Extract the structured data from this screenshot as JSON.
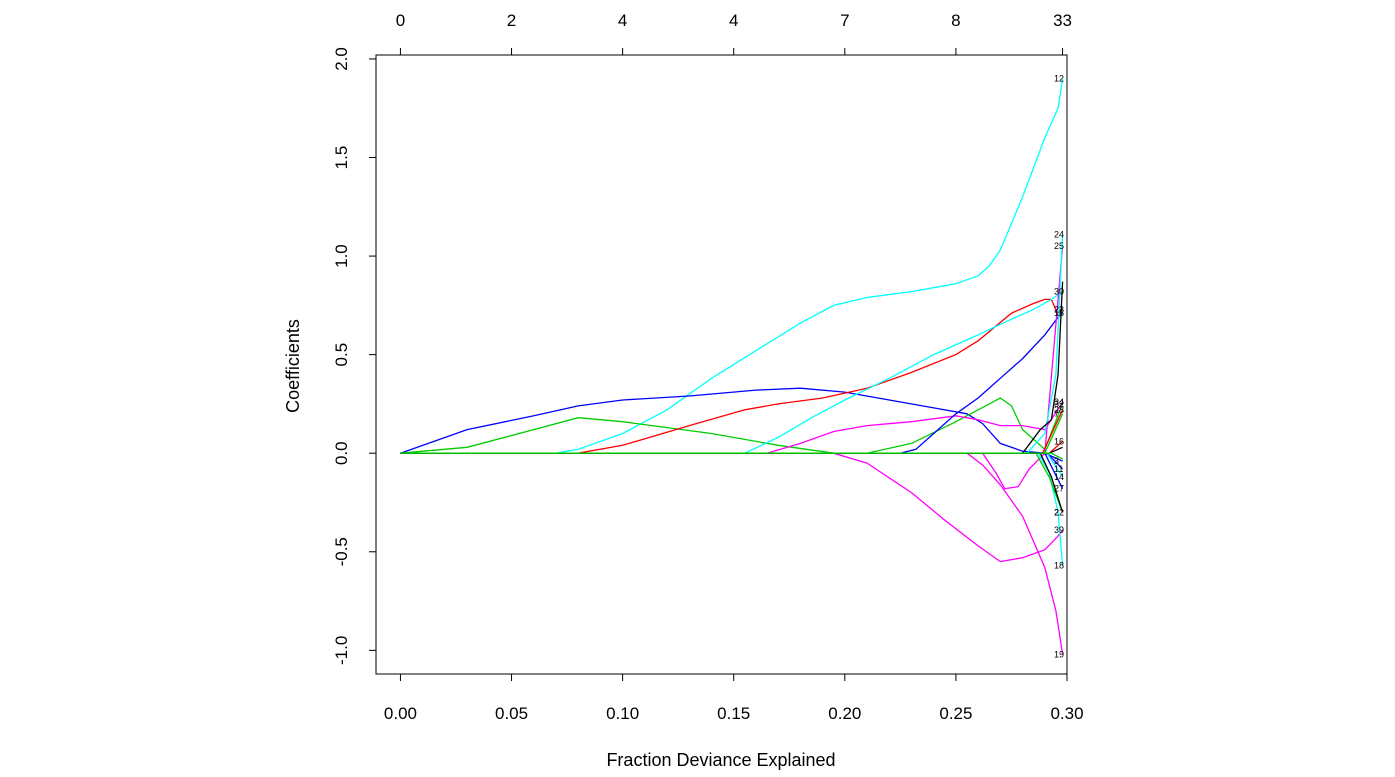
{
  "chart_data": {
    "type": "line",
    "title": "",
    "xlabel": "Fraction Deviance Explained",
    "ylabel": "Coefficients",
    "xlim": [
      -0.011,
      0.3
    ],
    "ylim": [
      -1.12,
      2.02
    ],
    "x_ticks": [
      0.0,
      0.05,
      0.1,
      0.15,
      0.2,
      0.25,
      0.3
    ],
    "x_tick_labels": [
      "0.00",
      "0.05",
      "0.10",
      "0.15",
      "0.20",
      "0.25",
      "0.30"
    ],
    "y_ticks": [
      -1.0,
      -0.5,
      0.0,
      0.5,
      1.0,
      1.5,
      2.0
    ],
    "y_tick_labels": [
      "-1.0",
      "-0.5",
      "0.0",
      "0.5",
      "1.0",
      "1.5",
      "2.0"
    ],
    "top_axis": {
      "ticks": [
        0.0,
        0.05,
        0.1,
        0.15,
        0.2,
        0.25,
        0.298
      ],
      "labels": [
        "0",
        "2",
        "4",
        "4",
        "7",
        "8",
        "33"
      ]
    },
    "grid": false,
    "legend": "none",
    "series": [
      {
        "color": "#00FFFF",
        "x": [
          0.0,
          0.07,
          0.08,
          0.1,
          0.12,
          0.14,
          0.16,
          0.18,
          0.195,
          0.21,
          0.23,
          0.25,
          0.26,
          0.265,
          0.27,
          0.28,
          0.29,
          0.296,
          0.298
        ],
        "y": [
          0.0,
          0.0,
          0.02,
          0.1,
          0.22,
          0.38,
          0.52,
          0.66,
          0.75,
          0.79,
          0.82,
          0.86,
          0.9,
          0.95,
          1.03,
          1.3,
          1.6,
          1.75,
          1.9
        ],
        "label": "12"
      },
      {
        "color": "#0000FF",
        "x": [
          0.0,
          0.03,
          0.06,
          0.08,
          0.1,
          0.13,
          0.16,
          0.18,
          0.2,
          0.22,
          0.24,
          0.255,
          0.262,
          0.27,
          0.28,
          0.29,
          0.298
        ],
        "y": [
          0.0,
          0.12,
          0.19,
          0.24,
          0.27,
          0.29,
          0.32,
          0.33,
          0.31,
          0.27,
          0.23,
          0.2,
          0.15,
          0.05,
          0.01,
          0.0,
          -0.04
        ],
        "label": "3"
      },
      {
        "color": "#00CC00",
        "x": [
          0.0,
          0.03,
          0.06,
          0.08,
          0.1,
          0.14,
          0.17,
          0.195,
          0.21,
          0.23,
          0.25,
          0.265,
          0.27,
          0.275,
          0.28,
          0.29,
          0.298
        ],
        "y": [
          0.0,
          0.03,
          0.12,
          0.18,
          0.16,
          0.1,
          0.04,
          0.0,
          0.0,
          0.05,
          0.16,
          0.25,
          0.28,
          0.24,
          0.12,
          0.02,
          0.25
        ],
        "label": "32"
      },
      {
        "color": "#FF0000",
        "x": [
          0.0,
          0.08,
          0.1,
          0.13,
          0.155,
          0.17,
          0.19,
          0.21,
          0.23,
          0.25,
          0.26,
          0.275,
          0.285,
          0.29,
          0.293,
          0.296,
          0.298
        ],
        "y": [
          0.0,
          0.0,
          0.04,
          0.14,
          0.22,
          0.25,
          0.28,
          0.33,
          0.41,
          0.5,
          0.57,
          0.71,
          0.76,
          0.78,
          0.78,
          0.7,
          0.73
        ],
        "label": "23"
      },
      {
        "color": "#00FFFF",
        "x": [
          0.0,
          0.155,
          0.17,
          0.185,
          0.2,
          0.22,
          0.24,
          0.26,
          0.275,
          0.285,
          0.293,
          0.298
        ],
        "y": [
          0.0,
          0.0,
          0.08,
          0.18,
          0.27,
          0.38,
          0.5,
          0.6,
          0.68,
          0.73,
          0.78,
          0.82
        ],
        "label": "30"
      },
      {
        "color": "#FF00FF",
        "x": [
          0.0,
          0.165,
          0.18,
          0.195,
          0.21,
          0.23,
          0.25,
          0.26,
          0.27,
          0.28,
          0.29,
          0.298
        ],
        "y": [
          0.0,
          0.0,
          0.05,
          0.11,
          0.14,
          0.16,
          0.19,
          0.17,
          0.14,
          0.14,
          0.12,
          0.26
        ],
        "label": "34"
      },
      {
        "color": "#0000FF",
        "x": [
          0.0,
          0.225,
          0.232,
          0.24,
          0.25,
          0.26,
          0.27,
          0.28,
          0.29,
          0.296,
          0.298
        ],
        "y": [
          0.0,
          0.0,
          0.02,
          0.1,
          0.2,
          0.28,
          0.38,
          0.48,
          0.6,
          0.69,
          0.71
        ],
        "label": "15"
      },
      {
        "color": "#FF00FF",
        "x": [
          0.0,
          0.195,
          0.21,
          0.23,
          0.245,
          0.26,
          0.27,
          0.28,
          0.29,
          0.296,
          0.298
        ],
        "y": [
          0.0,
          0.0,
          -0.05,
          -0.2,
          -0.34,
          -0.47,
          -0.55,
          -0.53,
          -0.49,
          -0.42,
          -0.39
        ],
        "label": "39"
      },
      {
        "color": "#FF00FF",
        "x": [
          0.0,
          0.255,
          0.262,
          0.27,
          0.28,
          0.29,
          0.295,
          0.298
        ],
        "y": [
          0.0,
          0.0,
          -0.06,
          -0.16,
          -0.32,
          -0.58,
          -0.8,
          -1.02
        ],
        "label": "19"
      },
      {
        "color": "#FF00FF",
        "x": [
          0.0,
          0.262,
          0.268,
          0.272,
          0.278,
          0.283,
          0.29,
          0.298
        ],
        "y": [
          0.0,
          0.0,
          -0.1,
          -0.18,
          -0.17,
          -0.08,
          0.0,
          1.05
        ],
        "label": "25"
      },
      {
        "color": "#00FFFF",
        "x": [
          0.0,
          0.282,
          0.29,
          0.295,
          0.298
        ],
        "y": [
          0.0,
          0.0,
          0.1,
          0.4,
          1.11
        ],
        "label": "24"
      },
      {
        "color": "#000000",
        "x": [
          0.0,
          0.28,
          0.288,
          0.293,
          0.296,
          0.298
        ],
        "y": [
          0.0,
          0.0,
          0.12,
          0.17,
          0.4,
          0.87
        ],
        "label": ""
      },
      {
        "color": "#00FFFF",
        "x": [
          0.0,
          0.287,
          0.292,
          0.296,
          0.298
        ],
        "y": [
          0.0,
          0.0,
          -0.1,
          -0.3,
          -0.57
        ],
        "label": "18"
      },
      {
        "color": "#00CC00",
        "x": [
          0.0,
          0.286,
          0.292,
          0.298
        ],
        "y": [
          0.0,
          0.0,
          -0.12,
          -0.3
        ],
        "label": "22"
      },
      {
        "color": "#000000",
        "x": [
          0.0,
          0.288,
          0.293,
          0.298
        ],
        "y": [
          0.0,
          0.0,
          -0.12,
          -0.3
        ],
        "label": "2"
      },
      {
        "color": "#0000FF",
        "x": [
          0.0,
          0.29,
          0.298
        ],
        "y": [
          0.0,
          0.0,
          -0.18
        ],
        "label": "27"
      },
      {
        "color": "#FF0000",
        "x": [
          0.0,
          0.289,
          0.298
        ],
        "y": [
          0.0,
          0.0,
          0.22
        ],
        "label": "28"
      },
      {
        "color": "#00CC00",
        "x": [
          0.0,
          0.29,
          0.298
        ],
        "y": [
          0.0,
          0.0,
          0.2
        ],
        "label": "7"
      },
      {
        "color": "#0000FF",
        "x": [
          0.0,
          0.291,
          0.298
        ],
        "y": [
          0.0,
          0.0,
          -0.08
        ],
        "label": "11"
      },
      {
        "color": "#00FFFF",
        "x": [
          0.0,
          0.291,
          0.298
        ],
        "y": [
          0.0,
          0.0,
          -0.12
        ],
        "label": "14"
      },
      {
        "color": "#FF0000",
        "x": [
          0.0,
          0.292,
          0.298
        ],
        "y": [
          0.0,
          0.0,
          0.06
        ],
        "label": "16"
      },
      {
        "color": "#000000",
        "x": [
          0.0,
          0.292,
          0.298
        ],
        "y": [
          0.0,
          0.0,
          0.03
        ],
        "label": ""
      },
      {
        "color": "#00CC00",
        "x": [
          0.0,
          0.293,
          0.298
        ],
        "y": [
          0.0,
          0.0,
          -0.03
        ],
        "label": ""
      }
    ]
  }
}
